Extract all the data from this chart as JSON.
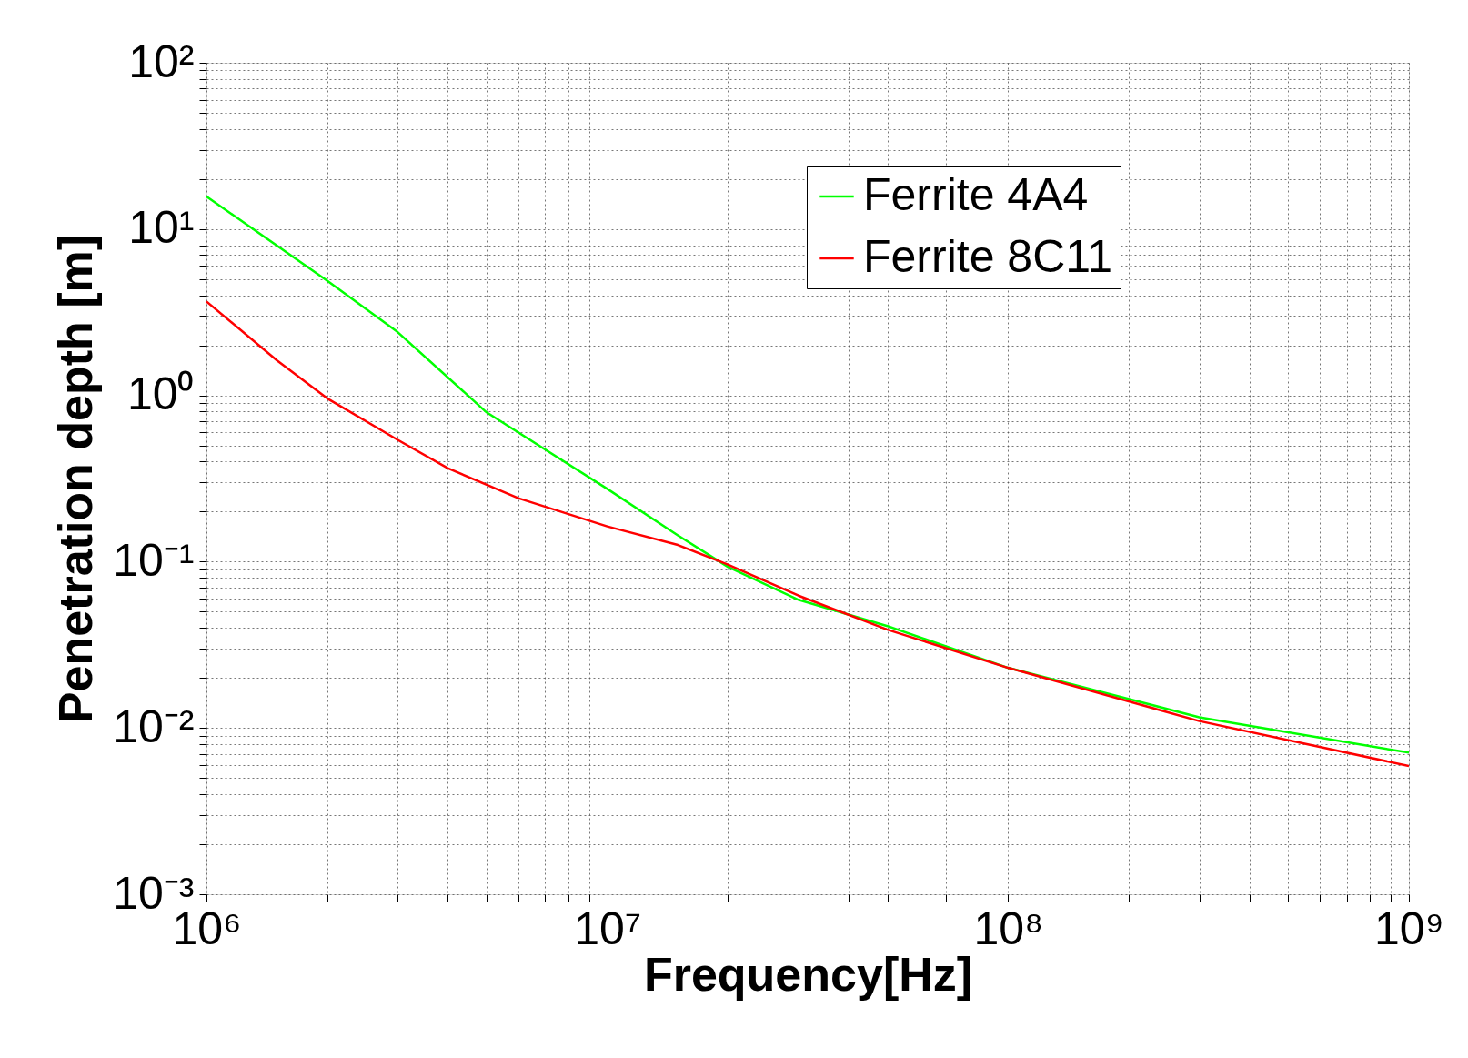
{
  "chart_data": {
    "type": "line",
    "xlabel": "Frequency[Hz]",
    "ylabel": "Penetration depth [m]",
    "log": "xy",
    "grid": true,
    "legend": "top right",
    "line_style": "solid",
    "marker": "none",
    "xlim": [
      1000000,
      1000000000
    ],
    "ylim": [
      0.001,
      100
    ],
    "xticks": [
      {
        "value": 1000000,
        "label": "10⁶"
      },
      {
        "value": 2000000,
        "label": null
      },
      {
        "value": 3000000,
        "label": null
      },
      {
        "value": 4000000,
        "label": null
      },
      {
        "value": 5000000,
        "label": null
      },
      {
        "value": 6000000,
        "label": null
      },
      {
        "value": 7000000,
        "label": null
      },
      {
        "value": 8000000,
        "label": null
      },
      {
        "value": 9000000,
        "label": null
      },
      {
        "value": 10000000,
        "label": "10⁷"
      },
      {
        "value": 20000000,
        "label": null
      },
      {
        "value": 30000000,
        "label": null
      },
      {
        "value": 40000000,
        "label": null
      },
      {
        "value": 50000000,
        "label": null
      },
      {
        "value": 60000000,
        "label": null
      },
      {
        "value": 70000000,
        "label": null
      },
      {
        "value": 80000000,
        "label": null
      },
      {
        "value": 90000000,
        "label": null
      },
      {
        "value": 100000000,
        "label": "10⁸"
      },
      {
        "value": 200000000,
        "label": null
      },
      {
        "value": 300000000,
        "label": null
      },
      {
        "value": 400000000,
        "label": null
      },
      {
        "value": 500000000,
        "label": null
      },
      {
        "value": 600000000,
        "label": null
      },
      {
        "value": 700000000,
        "label": null
      },
      {
        "value": 800000000,
        "label": null
      },
      {
        "value": 900000000,
        "label": null
      },
      {
        "value": 1000000000,
        "label": "10⁹"
      }
    ],
    "yticks": [
      {
        "value": 0.001,
        "label": "10⁻³"
      },
      {
        "value": 0.002,
        "label": null
      },
      {
        "value": 0.003,
        "label": null
      },
      {
        "value": 0.004,
        "label": null
      },
      {
        "value": 0.005,
        "label": null
      },
      {
        "value": 0.006,
        "label": null
      },
      {
        "value": 0.007,
        "label": null
      },
      {
        "value": 0.008,
        "label": null
      },
      {
        "value": 0.009,
        "label": null
      },
      {
        "value": 0.01,
        "label": "10⁻²"
      },
      {
        "value": 0.02,
        "label": null
      },
      {
        "value": 0.03,
        "label": null
      },
      {
        "value": 0.04,
        "label": null
      },
      {
        "value": 0.05,
        "label": null
      },
      {
        "value": 0.06,
        "label": null
      },
      {
        "value": 0.07,
        "label": null
      },
      {
        "value": 0.08,
        "label": null
      },
      {
        "value": 0.09,
        "label": null
      },
      {
        "value": 0.1,
        "label": "10⁻¹"
      },
      {
        "value": 0.2,
        "label": null
      },
      {
        "value": 0.3,
        "label": null
      },
      {
        "value": 0.4,
        "label": null
      },
      {
        "value": 0.5,
        "label": null
      },
      {
        "value": 0.6,
        "label": null
      },
      {
        "value": 0.7,
        "label": null
      },
      {
        "value": 0.8,
        "label": null
      },
      {
        "value": 0.9,
        "label": null
      },
      {
        "value": 1,
        "label": "10⁰"
      },
      {
        "value": 2,
        "label": null
      },
      {
        "value": 3,
        "label": null
      },
      {
        "value": 4,
        "label": null
      },
      {
        "value": 5,
        "label": null
      },
      {
        "value": 6,
        "label": null
      },
      {
        "value": 7,
        "label": null
      },
      {
        "value": 8,
        "label": null
      },
      {
        "value": 9,
        "label": null
      },
      {
        "value": 10,
        "label": "10¹"
      },
      {
        "value": 20,
        "label": null
      },
      {
        "value": 30,
        "label": null
      },
      {
        "value": 40,
        "label": null
      },
      {
        "value": 50,
        "label": null
      },
      {
        "value": 60,
        "label": null
      },
      {
        "value": 70,
        "label": null
      },
      {
        "value": 80,
        "label": null
      },
      {
        "value": 90,
        "label": null
      },
      {
        "value": 100,
        "label": "10²"
      }
    ],
    "series": [
      {
        "name": "Ferrite 4A4",
        "color": "#00ff00",
        "x": [
          1000000,
          2000000,
          3000000,
          5000000,
          10000000,
          15000000,
          20000000,
          30000000,
          50000000,
          100000000,
          300000000,
          1000000000
        ],
        "values": [
          15.7,
          4.9,
          2.4,
          0.79,
          0.274,
          0.144,
          0.093,
          0.059,
          0.041,
          0.023,
          0.0116,
          0.0071
        ]
      },
      {
        "name": "Ferrite 8C11",
        "color": "#ff0000",
        "x": [
          1000000,
          1500000,
          2000000,
          3000000,
          4000000,
          6000000,
          10000000,
          15000000,
          20000000,
          30000000,
          50000000,
          100000000,
          300000000,
          1000000000
        ],
        "values": [
          3.67,
          1.62,
          0.96,
          0.54,
          0.365,
          0.241,
          0.163,
          0.126,
          0.096,
          0.0625,
          0.039,
          0.023,
          0.011,
          0.0059
        ]
      }
    ]
  }
}
